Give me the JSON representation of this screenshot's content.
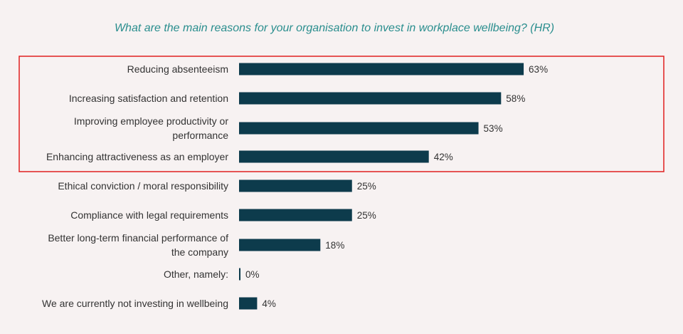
{
  "chart_data": {
    "type": "bar",
    "orientation": "horizontal",
    "title": "What are the main reasons for your organisation to invest in workplace wellbeing? (HR)",
    "categories": [
      [
        "Reducing absenteeism"
      ],
      [
        "Increasing satisfaction and retention"
      ],
      [
        "Improving employee productivity or",
        "performance"
      ],
      [
        "Enhancing attractiveness as an employer"
      ],
      [
        "Ethical conviction / moral responsibility"
      ],
      [
        "Compliance with legal requirements"
      ],
      [
        "Better long-term financial performance of",
        "the company"
      ],
      [
        "Other, namely:"
      ],
      [
        "We are currently not investing in wellbeing"
      ]
    ],
    "values": [
      63,
      58,
      53,
      42,
      25,
      25,
      18,
      0,
      4
    ],
    "value_labels": [
      "63%",
      "58%",
      "53%",
      "42%",
      "25%",
      "25%",
      "18%",
      "0%",
      "4%"
    ],
    "unit": "%",
    "highlight": {
      "from_index": 0,
      "to_index": 3,
      "color": "#e02020"
    },
    "bar_color": "#0d3b4c",
    "title_color": "#2a8e8e",
    "grid": false
  }
}
